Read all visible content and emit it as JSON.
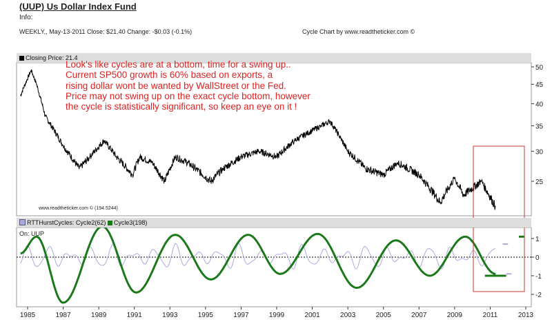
{
  "header": {
    "title": "(UUP) Us Dollar Index Fund",
    "info": "Info:",
    "meta": "WEEKLY,, May-13-2011  Close: $21.40  Change: -$0.03  (-0.1%)",
    "credit": "Cycle Chart by www.readtheticker.com ©"
  },
  "colors": {
    "price": "#000000",
    "cycle2": "#aaaadd",
    "cycle3": "#1a7a1a",
    "annotation": "#dd2222",
    "box": "#cc3333"
  },
  "chart_data": [
    {
      "type": "line",
      "title": "Closing Price: 21.4",
      "legend": "Closing Price: 21.4",
      "yscale": "log",
      "ylim": [
        20.5,
        52
      ],
      "yticks": [
        25,
        30,
        35,
        40,
        45,
        50
      ],
      "annotation": "Look's like cycles are at a bottom, time for a swing up..\nCurrent SP500 growth is 60% based on exports, a\nrising dollar wont be wanted by WallStreet or the Fed.\nPrice may not swing up on the exact cycle bottom, however\nthe cycle is statistically significant, so keep an eye on it !",
      "watermark": "www.readtheticker.com © (194.5244)",
      "series": [
        {
          "name": "Closing Price",
          "points": [
            [
              1984.6,
              42
            ],
            [
              1985.2,
              49
            ],
            [
              1985.5,
              45
            ],
            [
              1986,
              37
            ],
            [
              1987,
              31
            ],
            [
              1987.9,
              27
            ],
            [
              1988.5,
              29
            ],
            [
              1989.3,
              32
            ],
            [
              1990,
              29
            ],
            [
              1990.9,
              26
            ],
            [
              1991.3,
              29
            ],
            [
              1992,
              28
            ],
            [
              1992.7,
              25
            ],
            [
              1993.3,
              29
            ],
            [
              1994,
              28
            ],
            [
              1995.3,
              25
            ],
            [
              1996,
              27
            ],
            [
              1997,
              29
            ],
            [
              1998,
              30
            ],
            [
              1999,
              29
            ],
            [
              2000,
              32
            ],
            [
              2001.5,
              35
            ],
            [
              2002,
              36
            ],
            [
              2002.5,
              33
            ],
            [
              2003,
              30
            ],
            [
              2004,
              27
            ],
            [
              2005,
              26
            ],
            [
              2005.8,
              28
            ],
            [
              2007,
              26
            ],
            [
              2008.2,
              22
            ],
            [
              2009,
              25.5
            ],
            [
              2009.5,
              23
            ],
            [
              2010.5,
              25
            ],
            [
              2011.3,
              21.4
            ]
          ]
        }
      ]
    },
    {
      "type": "line",
      "legend": [
        "RTTHurstCycles: Cycle2(62)",
        "Cycle3(198)"
      ],
      "label": "On: UUP",
      "ylim": [
        -2.7,
        2
      ],
      "yticks": [
        1,
        0,
        -1,
        -2
      ],
      "xticks": [
        "1985",
        "1987",
        "1989",
        "1991",
        "1993",
        "1995",
        "1997",
        "1999",
        "2001",
        "2003",
        "2005",
        "2007",
        "2009",
        "2011",
        "2013"
      ],
      "xlim": [
        1984.6,
        2013
      ],
      "series": [
        {
          "name": "Cycle3(198)",
          "extrema": [
            [
              1984.6,
              0.2
            ],
            [
              1985.5,
              1.1
            ],
            [
              1987.0,
              -2.45
            ],
            [
              1989.2,
              1.65
            ],
            [
              1991.1,
              -1.9
            ],
            [
              1993.3,
              1.2
            ],
            [
              1995.3,
              -1.2
            ],
            [
              1997.4,
              1.2
            ],
            [
              1999.2,
              -0.9
            ],
            [
              2001.3,
              1.25
            ],
            [
              2003.5,
              -1.65
            ],
            [
              2005.7,
              0.9
            ],
            [
              2007.6,
              -1.0
            ],
            [
              2009.6,
              1.1
            ],
            [
              2011.3,
              -0.9
            ]
          ],
          "projection": -1.0,
          "last_marker": 1.1
        },
        {
          "name": "Cycle2(62)",
          "period_years": 1.19,
          "amplitude": 0.5,
          "projection": 0.7
        }
      ]
    }
  ]
}
